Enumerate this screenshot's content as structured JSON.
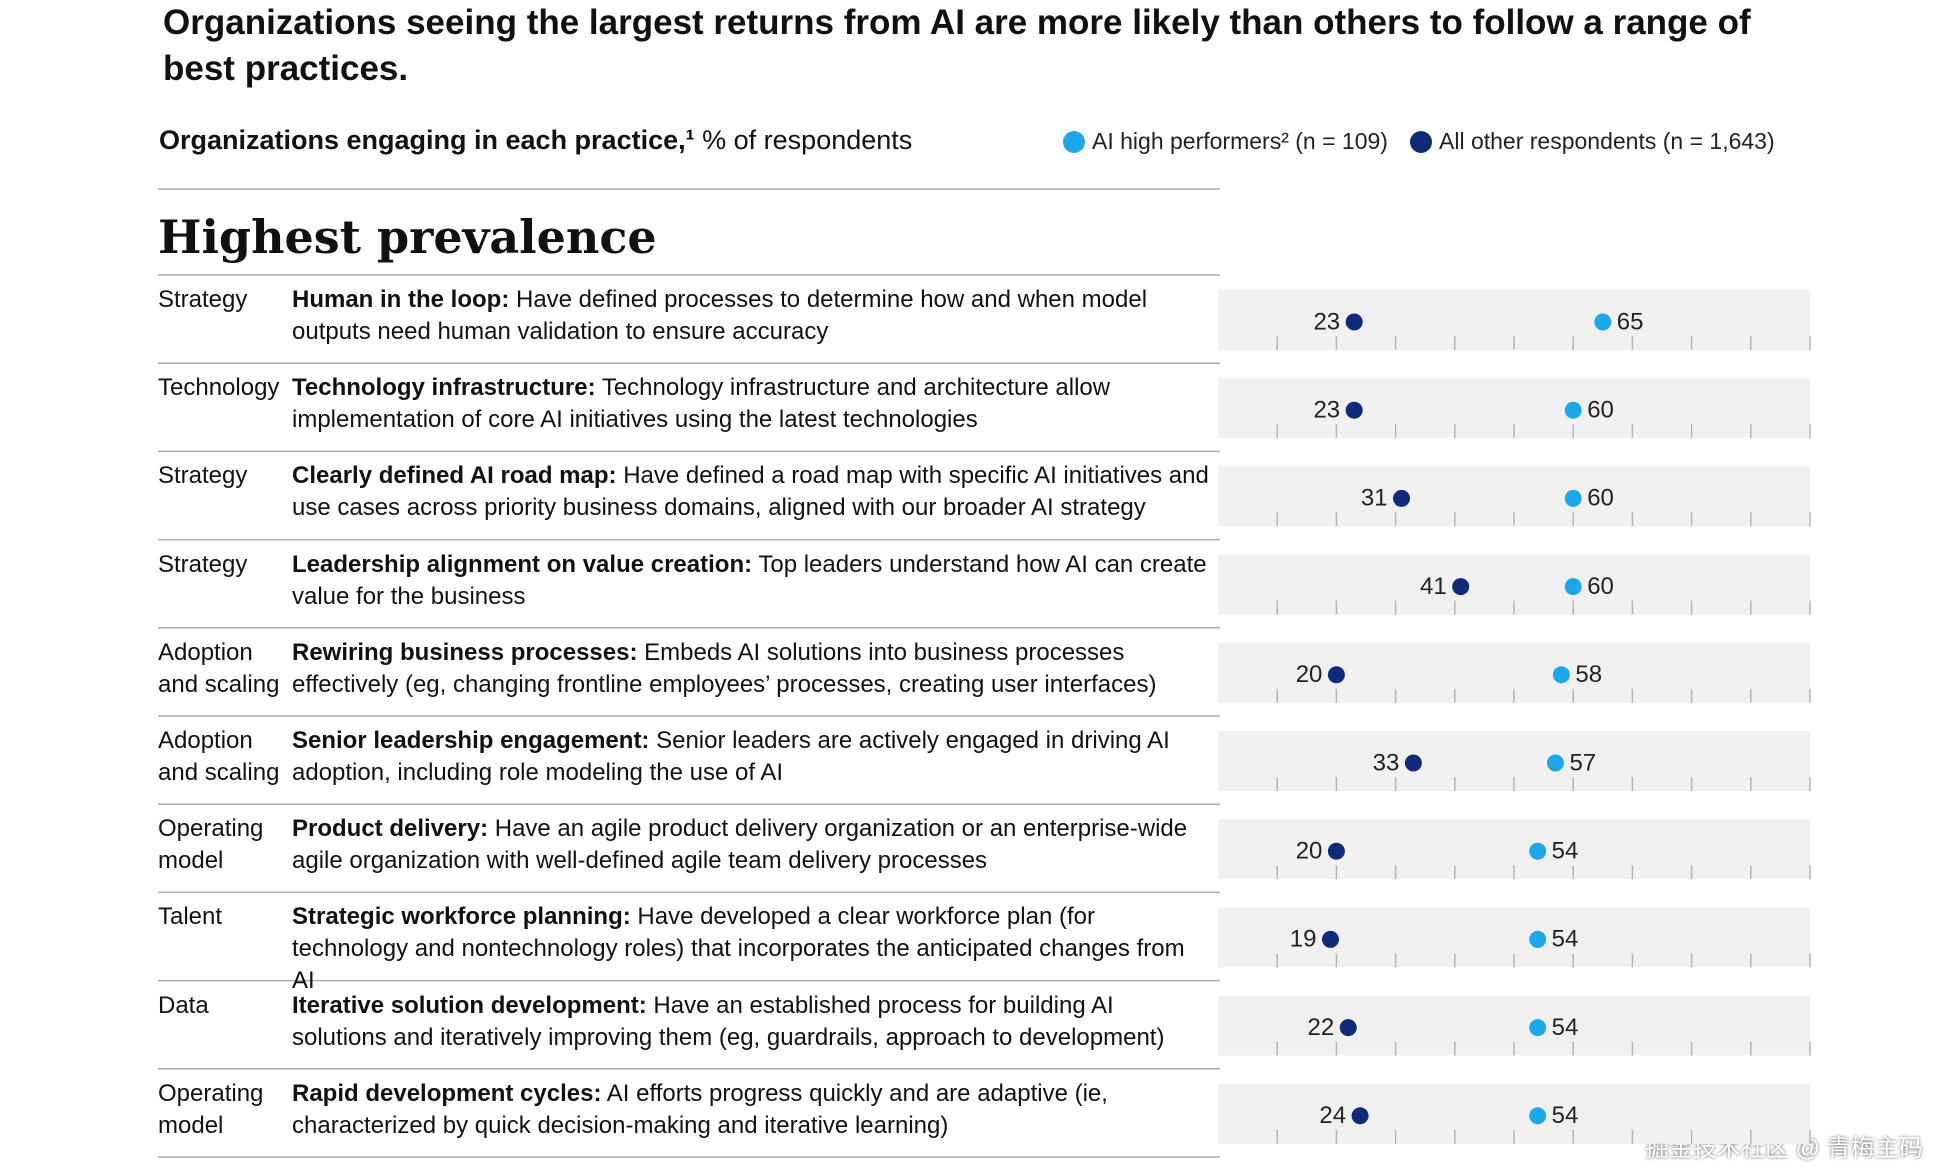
{
  "chart_data": {
    "type": "dot",
    "title": "Organizations seeing the largest returns from AI are more likely than others to follow a range of best practices.",
    "subtitle": "Organizations engaging in each practice,¹",
    "subtitle_units": "% of respondents",
    "section": "Highest prevalence",
    "groups": [
      "Strategy",
      "Technology",
      "Strategy",
      "Strategy",
      "Adoption and scaling",
      "Adoption and scaling",
      "Operating model",
      "Talent",
      "Data",
      "Operating model"
    ],
    "categories": [
      "Human in the loop:",
      "Technology infrastructure:",
      "Clearly defined AI road map:",
      "Leadership alignment on value creation:",
      "Rewiring business processes:",
      "Senior leadership engagement:",
      "Product delivery:",
      "Strategic workforce planning:",
      "Iterative solution development:",
      "Rapid development cycles:"
    ],
    "descriptions": [
      "Have defined processes to determine how and when model outputs need human validation to ensure accuracy",
      "Technology infrastructure and architecture allow implementation of core AI initiatives using the latest technologies",
      "Have defined a road map with specific AI initiatives and use cases across priority business domains, aligned with our broader AI strategy",
      "Top leaders understand how AI can create value for the business",
      "Embeds AI solutions into business processes effectively (eg, changing frontline employees’ processes, creating user interfaces)",
      "Senior leaders are actively engaged in driving AI adoption, including role modeling the use of AI",
      "Have an agile product delivery organization or an enterprise-wide agile organization with well-defined agile team delivery processes",
      "Have developed a clear workforce plan (for technology and nontechnology roles) that incorporates the anticipated changes from AI",
      "Have an established process for building AI solutions and iteratively improving them (eg, guardrails, approach to development)",
      "AI efforts progress quickly and are adaptive (ie, characterized by quick decision-making and iterative learning)"
    ],
    "series": [
      {
        "name": "AI high performers² (n = 109)",
        "color": "#1ea7e8",
        "values": [
          65,
          60,
          60,
          60,
          58,
          57,
          54,
          54,
          54,
          54
        ]
      },
      {
        "name": "All other respondents (n = 1,643)",
        "color": "#0f2a78",
        "values": [
          23,
          23,
          31,
          41,
          20,
          33,
          20,
          19,
          22,
          24
        ]
      }
    ],
    "xlim": [
      0,
      100
    ],
    "xticks": [
      10,
      20,
      30,
      40,
      50,
      60,
      70,
      80,
      90,
      100
    ],
    "watermark": "掘金技术社区 @ 青梅主码"
  }
}
